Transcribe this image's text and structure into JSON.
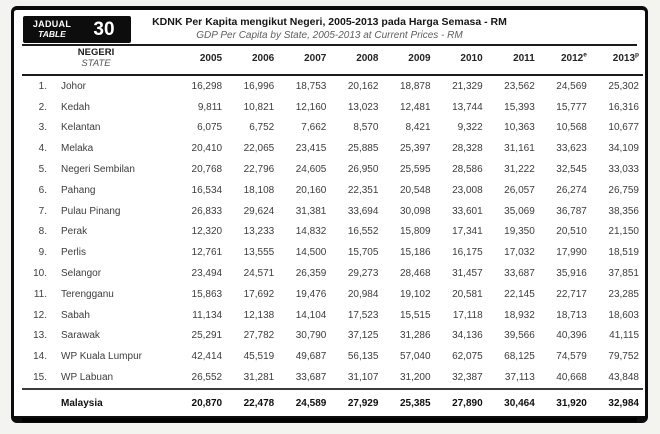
{
  "badge": {
    "top": "JADUAL",
    "bottom": "TABLE",
    "number": "30"
  },
  "header": {
    "title": "KDNK Per Kapita mengikut Negeri, 2005-2013 pada Harga Semasa - RM",
    "subtitle": "GDP Per Capita by State, 2005-2013 at Current Prices - RM"
  },
  "columns": {
    "state_primary": "NEGERI",
    "state_secondary": "STATE",
    "years": [
      "2005",
      "2006",
      "2007",
      "2008",
      "2009",
      "2010",
      "2011",
      "2012",
      "2013"
    ],
    "year_sups": [
      "",
      "",
      "",
      "",
      "",
      "",
      "",
      "e",
      "p"
    ]
  },
  "rows": [
    {
      "no": "1.",
      "state": "Johor",
      "values": [
        "16,298",
        "16,996",
        "18,753",
        "20,162",
        "18,878",
        "21,329",
        "23,562",
        "24,569",
        "25,302"
      ]
    },
    {
      "no": "2.",
      "state": "Kedah",
      "values": [
        "9,811",
        "10,821",
        "12,160",
        "13,023",
        "12,481",
        "13,744",
        "15,393",
        "15,777",
        "16,316"
      ]
    },
    {
      "no": "3.",
      "state": "Kelantan",
      "values": [
        "6,075",
        "6,752",
        "7,662",
        "8,570",
        "8,421",
        "9,322",
        "10,363",
        "10,568",
        "10,677"
      ]
    },
    {
      "no": "4.",
      "state": "Melaka",
      "values": [
        "20,410",
        "22,065",
        "23,415",
        "25,885",
        "25,397",
        "28,328",
        "31,161",
        "33,623",
        "34,109"
      ]
    },
    {
      "no": "5.",
      "state": "Negeri Sembilan",
      "values": [
        "20,768",
        "22,796",
        "24,605",
        "26,950",
        "25,595",
        "28,586",
        "31,222",
        "32,545",
        "33,033"
      ]
    },
    {
      "no": "6.",
      "state": "Pahang",
      "values": [
        "16,534",
        "18,108",
        "20,160",
        "22,351",
        "20,548",
        "23,008",
        "26,057",
        "26,274",
        "26,759"
      ]
    },
    {
      "no": "7.",
      "state": "Pulau Pinang",
      "values": [
        "26,833",
        "29,624",
        "31,381",
        "33,694",
        "30,098",
        "33,601",
        "35,069",
        "36,787",
        "38,356"
      ]
    },
    {
      "no": "8.",
      "state": "Perak",
      "values": [
        "12,320",
        "13,233",
        "14,832",
        "16,552",
        "15,809",
        "17,341",
        "19,350",
        "20,510",
        "21,150"
      ]
    },
    {
      "no": "9.",
      "state": "Perlis",
      "values": [
        "12,761",
        "13,555",
        "14,500",
        "15,705",
        "15,186",
        "16,175",
        "17,032",
        "17,990",
        "18,519"
      ]
    },
    {
      "no": "10.",
      "state": "Selangor",
      "values": [
        "23,494",
        "24,571",
        "26,359",
        "29,273",
        "28,468",
        "31,457",
        "33,687",
        "35,916",
        "37,851"
      ]
    },
    {
      "no": "11.",
      "state": "Terengganu",
      "values": [
        "15,863",
        "17,692",
        "19,476",
        "20,984",
        "19,102",
        "20,581",
        "22,145",
        "22,717",
        "23,285"
      ]
    },
    {
      "no": "12.",
      "state": "Sabah",
      "values": [
        "11,134",
        "12,138",
        "14,104",
        "17,523",
        "15,515",
        "17,118",
        "18,932",
        "18,713",
        "18,603"
      ]
    },
    {
      "no": "13.",
      "state": "Sarawak",
      "values": [
        "25,291",
        "27,782",
        "30,790",
        "37,125",
        "31,286",
        "34,136",
        "39,566",
        "40,396",
        "41,115"
      ]
    },
    {
      "no": "14.",
      "state": "WP Kuala Lumpur",
      "values": [
        "42,414",
        "45,519",
        "49,687",
        "56,135",
        "57,040",
        "62,075",
        "68,125",
        "74,579",
        "79,752"
      ]
    },
    {
      "no": "15.",
      "state": "WP Labuan",
      "values": [
        "26,552",
        "31,281",
        "33,687",
        "31,107",
        "31,200",
        "32,387",
        "37,113",
        "40,668",
        "43,848"
      ]
    }
  ],
  "footer": {
    "label": "Malaysia",
    "values": [
      "20,870",
      "22,478",
      "24,589",
      "27,929",
      "25,385",
      "27,890",
      "30,464",
      "31,920",
      "32,984"
    ]
  }
}
